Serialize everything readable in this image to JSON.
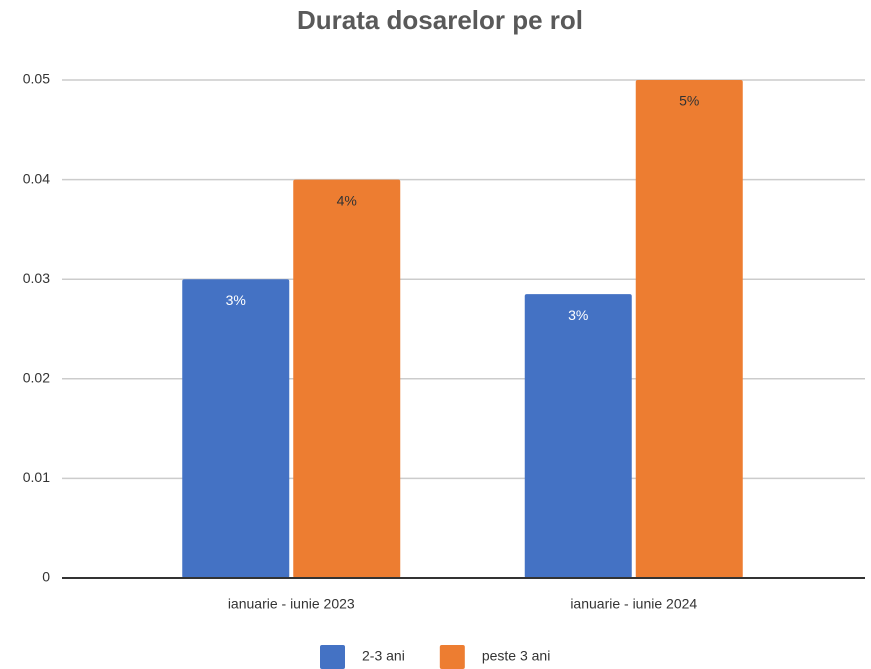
{
  "chart_data": {
    "type": "bar",
    "title": "Durata dosarelor pe rol",
    "categories": [
      "ianuarie - iunie 2023",
      "ianuarie - iunie 2024"
    ],
    "series": [
      {
        "name": "2-3 ani",
        "color": "#4472c4",
        "values": [
          0.03,
          0.0285
        ],
        "value_labels": [
          "3%",
          "3%"
        ]
      },
      {
        "name": "peste 3 ani",
        "color": "#ed7d31",
        "values": [
          0.04,
          0.05
        ],
        "value_labels": [
          "4%",
          "5%"
        ]
      }
    ],
    "ylim": [
      0,
      0.05
    ],
    "yticks": [
      0,
      0.01,
      0.02,
      0.03,
      0.04,
      0.05
    ],
    "grid": true,
    "legend": "bottom"
  }
}
